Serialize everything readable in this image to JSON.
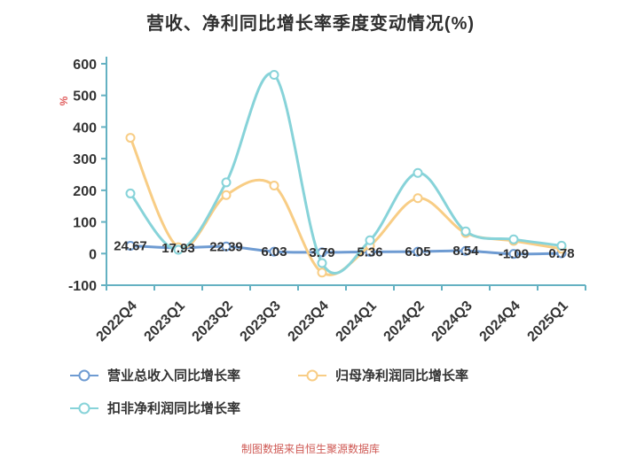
{
  "title": "营收、净利同比增长率季度变动情况(%)",
  "footer": "制图数据来自恒生聚源数据库",
  "colors": {
    "axis": "#64b1c2",
    "tick_text": "#333333",
    "ylabel": "#e05c5c",
    "footer": "#cf5a55",
    "data_label": "#2f2f2f"
  },
  "chart_data": {
    "type": "line",
    "title": "营收、净利同比增长率季度变动情况(%)",
    "xlabel": "",
    "ylabel": "%",
    "ylim": [
      -100,
      600
    ],
    "yticks": [
      600,
      500,
      400,
      300,
      200,
      100,
      0,
      -100
    ],
    "grid": false,
    "legend_position": "bottom-left",
    "smooth": true,
    "categories": [
      "2022Q4",
      "2023Q1",
      "2023Q2",
      "2023Q3",
      "2023Q4",
      "2024Q1",
      "2024Q2",
      "2024Q3",
      "2024Q4",
      "2025Q1"
    ],
    "series": [
      {
        "name": "营业总收入同比增长率",
        "color": "#6e9bd2",
        "show_labels": true,
        "values": [
          24.67,
          17.93,
          22.39,
          6.03,
          3.79,
          5.36,
          6.05,
          8.54,
          -1.09,
          0.78
        ]
      },
      {
        "name": "归母净利润同比增长率",
        "color": "#f8cd85",
        "show_labels": false,
        "values": [
          366,
          20,
          185,
          215,
          -60,
          25,
          175,
          65,
          40,
          15
        ]
      },
      {
        "name": "扣非净利润同比增长率",
        "color": "#87d3d9",
        "show_labels": false,
        "values": [
          190,
          12,
          225,
          565,
          -30,
          42,
          255,
          70,
          45,
          25
        ]
      }
    ]
  }
}
